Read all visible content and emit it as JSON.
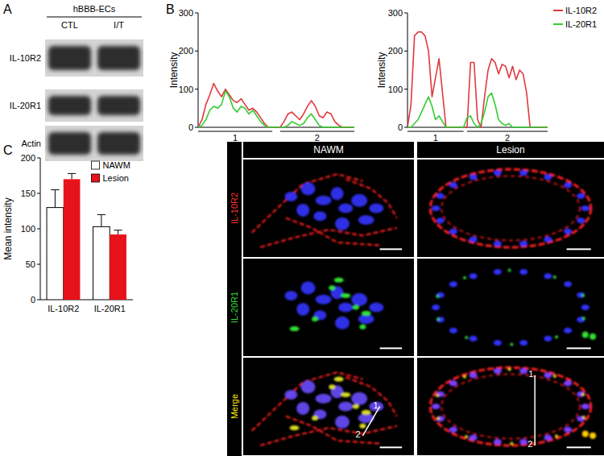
{
  "panel_labels": [
    "A",
    "B",
    "C"
  ],
  "blot": {
    "header": "hBBB-ECs",
    "columns": [
      "CTL",
      "I/T"
    ],
    "rows": [
      "IL-10R2",
      "IL-20R1",
      "Actin"
    ]
  },
  "chart_data": [
    {
      "type": "line",
      "y_label": "Intensity",
      "tick_labels": "y",
      "x": [
        0,
        1,
        2,
        3,
        4,
        5,
        6,
        7,
        8,
        9,
        10,
        11,
        12,
        13,
        14,
        15,
        16,
        17,
        18,
        19,
        20,
        21,
        22,
        23,
        24,
        25,
        26,
        27,
        28,
        29,
        30,
        31,
        32,
        33,
        34,
        35,
        36,
        37,
        38,
        39,
        40
      ],
      "xlim": [
        0,
        40
      ],
      "ylim": [
        0,
        300
      ],
      "yticks": [
        0,
        100,
        200,
        300
      ],
      "segments": [
        {
          "label": "1",
          "start": 0,
          "end": 19
        },
        {
          "label": "2",
          "start": 21,
          "end": 40
        }
      ],
      "series": [
        {
          "name": "IL-10R2",
          "color": "#e0393e",
          "values": [
            0,
            20,
            60,
            85,
            115,
            95,
            80,
            100,
            85,
            70,
            65,
            75,
            60,
            45,
            50,
            40,
            25,
            10,
            0,
            0,
            0,
            0,
            15,
            35,
            40,
            30,
            20,
            35,
            55,
            70,
            55,
            30,
            25,
            40,
            35,
            15,
            5,
            0,
            0,
            0,
            0
          ]
        },
        {
          "name": "IL-20R1",
          "color": "#33cc33",
          "values": [
            0,
            5,
            20,
            45,
            55,
            50,
            60,
            95,
            80,
            50,
            40,
            55,
            50,
            35,
            45,
            30,
            15,
            5,
            0,
            0,
            0,
            0,
            0,
            5,
            15,
            10,
            5,
            10,
            25,
            35,
            20,
            5,
            0,
            0,
            0,
            0,
            0,
            0,
            0,
            0,
            0
          ]
        }
      ]
    },
    {
      "type": "line",
      "y_label": "Intensity",
      "tick_labels": "y",
      "legend": "top-right",
      "x": [
        0,
        1,
        2,
        3,
        4,
        5,
        6,
        7,
        8,
        9,
        10,
        11,
        12,
        13,
        14,
        15,
        16,
        17,
        18,
        19,
        20,
        21,
        22,
        23,
        24,
        25,
        26,
        27,
        28,
        29,
        30,
        31,
        32,
        33,
        34,
        35,
        36,
        37,
        38,
        39,
        40
      ],
      "xlim": [
        0,
        40
      ],
      "ylim": [
        0,
        300
      ],
      "yticks": [
        0,
        100,
        200,
        300
      ],
      "segments": [
        {
          "label": "1",
          "start": 0,
          "end": 16
        },
        {
          "label": "2",
          "start": 17,
          "end": 40
        }
      ],
      "series": [
        {
          "name": "IL-10R2",
          "color": "#e0393e",
          "values": [
            0,
            60,
            240,
            250,
            250,
            240,
            200,
            80,
            130,
            180,
            90,
            0,
            0,
            0,
            0,
            0,
            0,
            0,
            170,
            170,
            20,
            0,
            80,
            150,
            180,
            170,
            140,
            165,
            160,
            130,
            160,
            125,
            150,
            140,
            90,
            0,
            0,
            0,
            0,
            0,
            0
          ]
        },
        {
          "name": "IL-20R1",
          "color": "#33cc33",
          "values": [
            0,
            0,
            10,
            20,
            40,
            60,
            80,
            55,
            20,
            30,
            15,
            0,
            0,
            0,
            0,
            0,
            0,
            25,
            30,
            10,
            0,
            10,
            40,
            80,
            90,
            60,
            20,
            10,
            5,
            10,
            0,
            0,
            0,
            0,
            0,
            0,
            0,
            0,
            0,
            0,
            0
          ]
        }
      ]
    },
    {
      "type": "bar",
      "y_label": "Mean intensity",
      "legend": "top-right",
      "categories": [
        "IL-10R2",
        "IL-20R1"
      ],
      "ylim": [
        0,
        200
      ],
      "yticks": [
        0,
        50,
        100,
        150,
        200
      ],
      "series": [
        {
          "name": "NAWM",
          "color": "#ffffff",
          "values": [
            130,
            103
          ],
          "errors": [
            25,
            17
          ]
        },
        {
          "name": "Lesion",
          "color": "#e8121b",
          "values": [
            170,
            92
          ],
          "errors": [
            8,
            6
          ]
        }
      ]
    }
  ],
  "micrographs": {
    "columns": [
      "NAWM",
      "Lesion"
    ],
    "rows": [
      {
        "label": "IL-10R2",
        "color": "#ff3030"
      },
      {
        "label": "IL-20R1",
        "color": "#33dd33"
      },
      {
        "label": "Merge",
        "color": "#ffee00"
      }
    ],
    "line_labels": [
      "1",
      "2"
    ]
  }
}
